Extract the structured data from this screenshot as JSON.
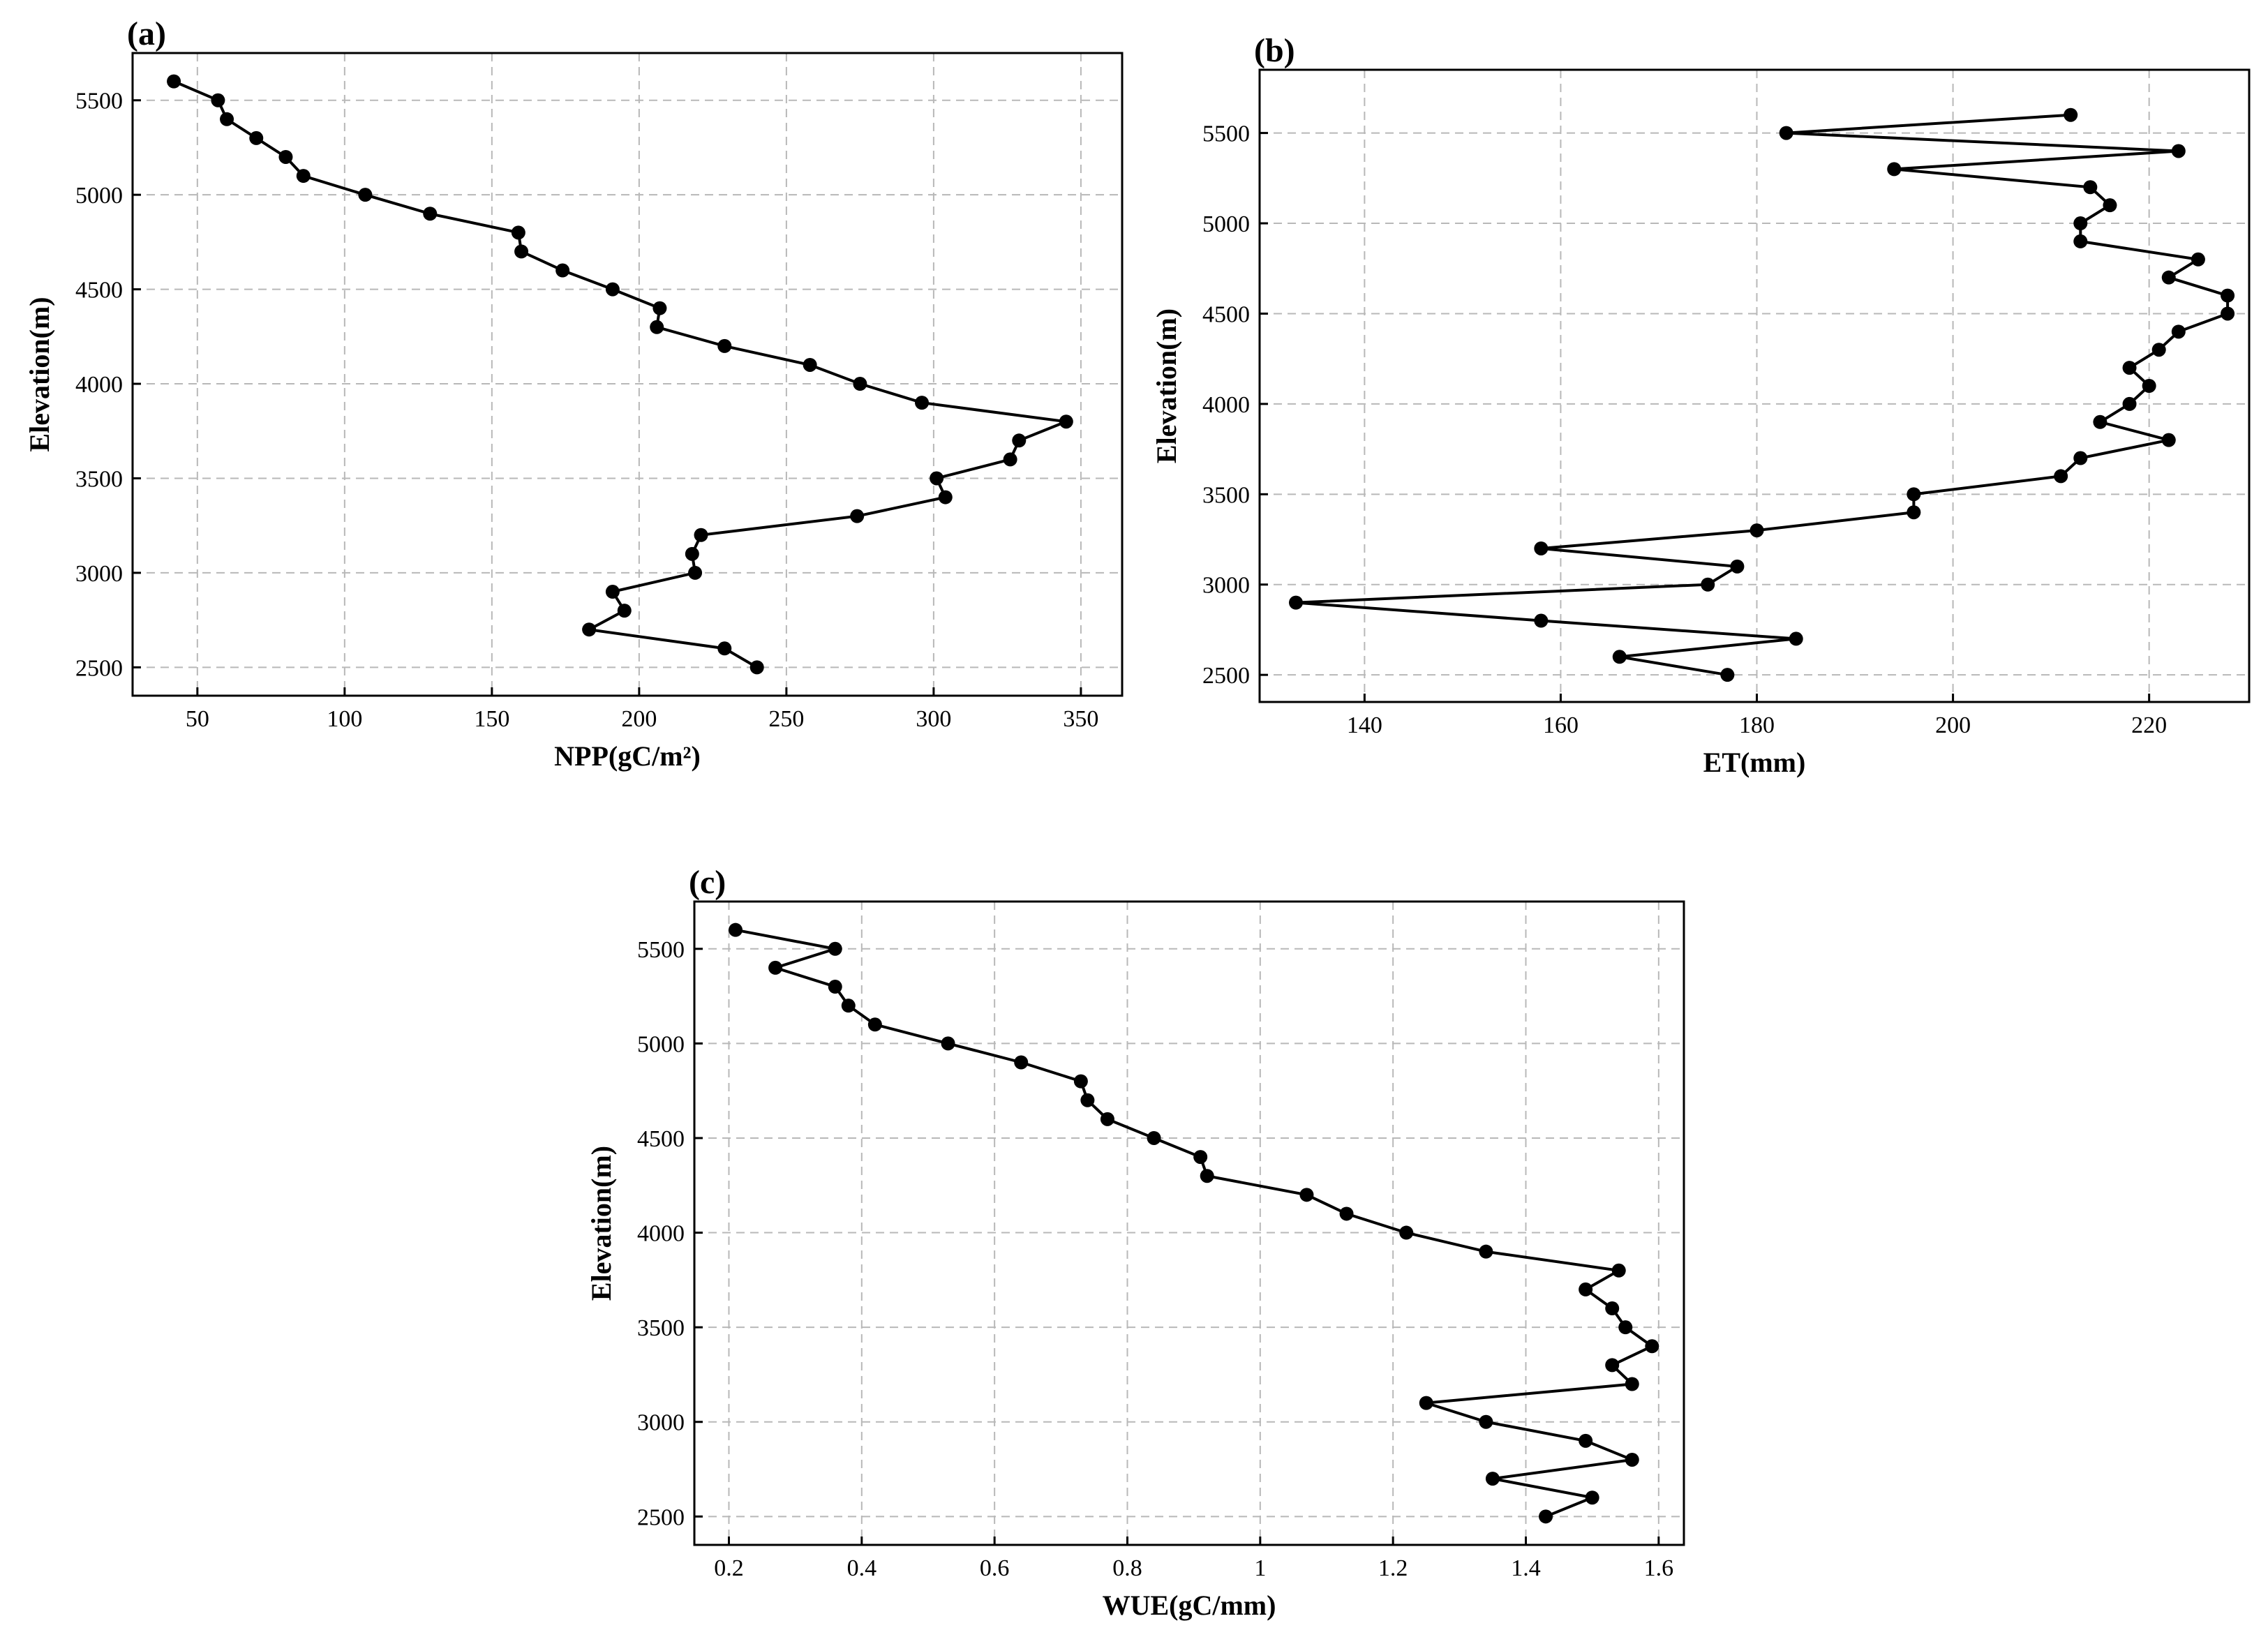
{
  "chart_data": [
    {
      "type": "line",
      "panel": "(a)",
      "xlabel": "NPP(gC/m²)",
      "ylabel": "Elevation(m)",
      "xlim": [
        28,
        364
      ],
      "ylim": [
        2350,
        5750
      ],
      "xticks": [
        50,
        100,
        150,
        200,
        250,
        300,
        350
      ],
      "yticks": [
        2500,
        3000,
        3500,
        4000,
        4500,
        5000,
        5500
      ],
      "grid": true,
      "series": [
        {
          "x": [
            42,
            57,
            60,
            70,
            80,
            86,
            107,
            129,
            159,
            160,
            174,
            191,
            207,
            206,
            229,
            258,
            275,
            296,
            345,
            329,
            326,
            301,
            304,
            274,
            221,
            218,
            219,
            191,
            195,
            183,
            229,
            240
          ],
          "y": [
            5600,
            5500,
            5400,
            5300,
            5200,
            5100,
            5000,
            4900,
            4800,
            4700,
            4600,
            4500,
            4400,
            4300,
            4200,
            4100,
            4000,
            3900,
            3800,
            3700,
            3600,
            3500,
            3400,
            3300,
            3200,
            3100,
            3000,
            2900,
            2800,
            2700,
            2600,
            2500
          ]
        }
      ]
    },
    {
      "type": "line",
      "panel": "(b)",
      "xlabel": "ET(mm)",
      "ylabel": "Elevation(m)",
      "xlim": [
        129.3,
        230.2
      ],
      "ylim": [
        2350,
        5850
      ],
      "xticks": [
        140,
        160,
        180,
        200,
        220
      ],
      "yticks": [
        2500,
        3000,
        3500,
        4000,
        4500,
        5000,
        5500
      ],
      "grid": true,
      "series": [
        {
          "x": [
            212,
            183,
            223,
            194,
            214,
            216,
            213,
            213,
            225,
            222,
            228,
            228,
            223,
            221,
            218,
            220,
            218,
            215,
            222,
            213,
            211,
            196,
            196,
            180,
            158,
            178,
            175,
            133,
            158,
            184,
            166,
            177
          ],
          "y": [
            5600,
            5500,
            5400,
            5300,
            5200,
            5100,
            5000,
            4900,
            4800,
            4700,
            4600,
            4500,
            4400,
            4300,
            4200,
            4100,
            4000,
            3900,
            3800,
            3700,
            3600,
            3500,
            3400,
            3300,
            3200,
            3100,
            3000,
            2900,
            2800,
            2700,
            2600,
            2500
          ]
        }
      ]
    },
    {
      "type": "line",
      "panel": "(c)",
      "xlabel": "WUE(gC/mm)",
      "ylabel": "Elevation(m)",
      "xlim": [
        0.148,
        1.638
      ],
      "ylim": [
        2350,
        5750
      ],
      "xticks": [
        0.2,
        0.4,
        0.6,
        0.8,
        1.0,
        1.2,
        1.4,
        1.6
      ],
      "yticks": [
        2500,
        3000,
        3500,
        4000,
        4500,
        5000,
        5500
      ],
      "grid": true,
      "series": [
        {
          "x": [
            0.21,
            0.36,
            0.27,
            0.36,
            0.38,
            0.42,
            0.53,
            0.64,
            0.73,
            0.74,
            0.77,
            0.84,
            0.91,
            0.92,
            1.07,
            1.13,
            1.22,
            1.34,
            1.54,
            1.49,
            1.53,
            1.55,
            1.59,
            1.53,
            1.56,
            1.25,
            1.34,
            1.49,
            1.56,
            1.35,
            1.5,
            1.43
          ],
          "y": [
            5600,
            5500,
            5400,
            5300,
            5200,
            5100,
            5000,
            4900,
            4800,
            4700,
            4600,
            4500,
            4400,
            4300,
            4200,
            4100,
            4000,
            3900,
            3800,
            3700,
            3600,
            3500,
            3400,
            3300,
            3200,
            3100,
            3000,
            2900,
            2800,
            2700,
            2600,
            2500
          ]
        }
      ]
    }
  ]
}
